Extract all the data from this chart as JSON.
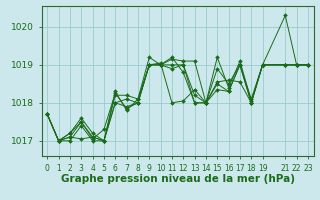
{
  "title": "Graphe pression niveau de la mer (hPa)",
  "bg_color": "#cce8ec",
  "grid_color": "#99cccc",
  "line_color": "#1a6b1a",
  "marker_color": "#1a6b1a",
  "ylim": [
    1016.6,
    1020.55
  ],
  "yticks": [
    1017,
    1018,
    1019,
    1020
  ],
  "x_values": [
    0,
    1,
    2,
    3,
    4,
    5,
    6,
    7,
    8,
    9,
    10,
    11,
    12,
    13,
    14,
    15,
    16,
    17,
    18,
    19,
    21,
    22,
    23
  ],
  "series": [
    [
      1017.7,
      1017.0,
      1017.0,
      1017.4,
      1017.0,
      1017.0,
      1018.3,
      1017.8,
      1018.1,
      1019.2,
      1019.0,
      1019.15,
      1019.1,
      1019.1,
      1018.0,
      1018.55,
      1018.6,
      1018.55,
      1018.0,
      1019.0,
      1020.3,
      1019.0,
      1019.0
    ],
    [
      1017.7,
      1017.0,
      1017.2,
      1017.5,
      1017.05,
      1017.3,
      1018.25,
      1017.85,
      1018.0,
      1019.0,
      1019.05,
      1018.0,
      1018.05,
      1018.35,
      1018.0,
      1019.2,
      1018.4,
      1019.1,
      1018.05,
      1019.0,
      1019.0,
      1019.0,
      1019.0
    ],
    [
      1017.7,
      1017.0,
      1017.1,
      1017.05,
      1017.1,
      1017.0,
      1018.0,
      1017.9,
      1018.0,
      1019.0,
      1019.0,
      1019.2,
      1018.8,
      1018.0,
      1018.0,
      1018.35,
      1018.3,
      1019.0,
      1018.0,
      1019.0,
      1019.0,
      1019.0,
      1019.0
    ],
    [
      1017.7,
      1017.0,
      1017.1,
      1017.5,
      1017.1,
      1017.0,
      1018.0,
      1018.1,
      1018.0,
      1019.0,
      1019.0,
      1018.9,
      1019.0,
      1018.2,
      1018.0,
      1018.9,
      1018.5,
      1019.0,
      1018.1,
      1019.0,
      1019.0,
      1019.0,
      1019.0
    ],
    [
      1017.7,
      1017.0,
      1017.2,
      1017.6,
      1017.2,
      1017.0,
      1018.2,
      1018.2,
      1018.1,
      1019.0,
      1019.0,
      1019.0,
      1019.0,
      1018.0,
      1018.0,
      1018.5,
      1018.3,
      1019.0,
      1018.0,
      1019.0,
      1019.0,
      1019.0,
      1019.0
    ]
  ],
  "xlabel_fontsize": 7.5,
  "ytick_fontsize": 6.5,
  "xtick_fontsize": 5.5
}
